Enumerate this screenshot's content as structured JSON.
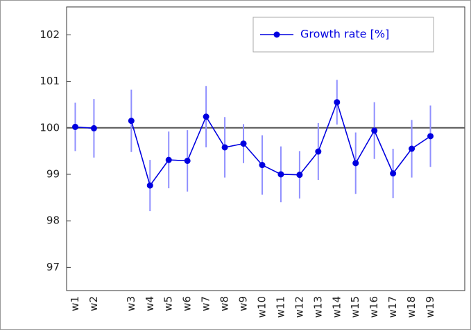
{
  "chart_data": {
    "type": "line",
    "categories": [
      "w1",
      "w2",
      null,
      "w3",
      "w4",
      "w5",
      "w6",
      "w7",
      "w8",
      "w9",
      "w10",
      "w11",
      "w12",
      "w13",
      "w14",
      "w15",
      "w16",
      "w17",
      "w18",
      "w19"
    ],
    "series": [
      {
        "name": "Growth rate [%]",
        "color": "#0000e0",
        "error_color": "#8f8fff",
        "values": [
          100.02,
          99.99,
          null,
          100.15,
          98.76,
          99.31,
          99.29,
          100.24,
          99.58,
          99.66,
          99.2,
          99.0,
          98.99,
          99.49,
          100.55,
          99.24,
          99.94,
          99.02,
          99.55,
          99.82
        ],
        "errors": [
          0.52,
          0.63,
          null,
          0.67,
          0.55,
          0.61,
          0.66,
          0.66,
          0.65,
          0.42,
          0.64,
          0.6,
          0.51,
          0.61,
          0.48,
          0.66,
          0.61,
          0.53,
          0.62,
          0.66
        ]
      }
    ],
    "ylim": [
      96.5,
      102.6
    ],
    "yticks": [
      97,
      98,
      99,
      100,
      101,
      102
    ],
    "reference_line": 100,
    "legend": "upper right"
  }
}
